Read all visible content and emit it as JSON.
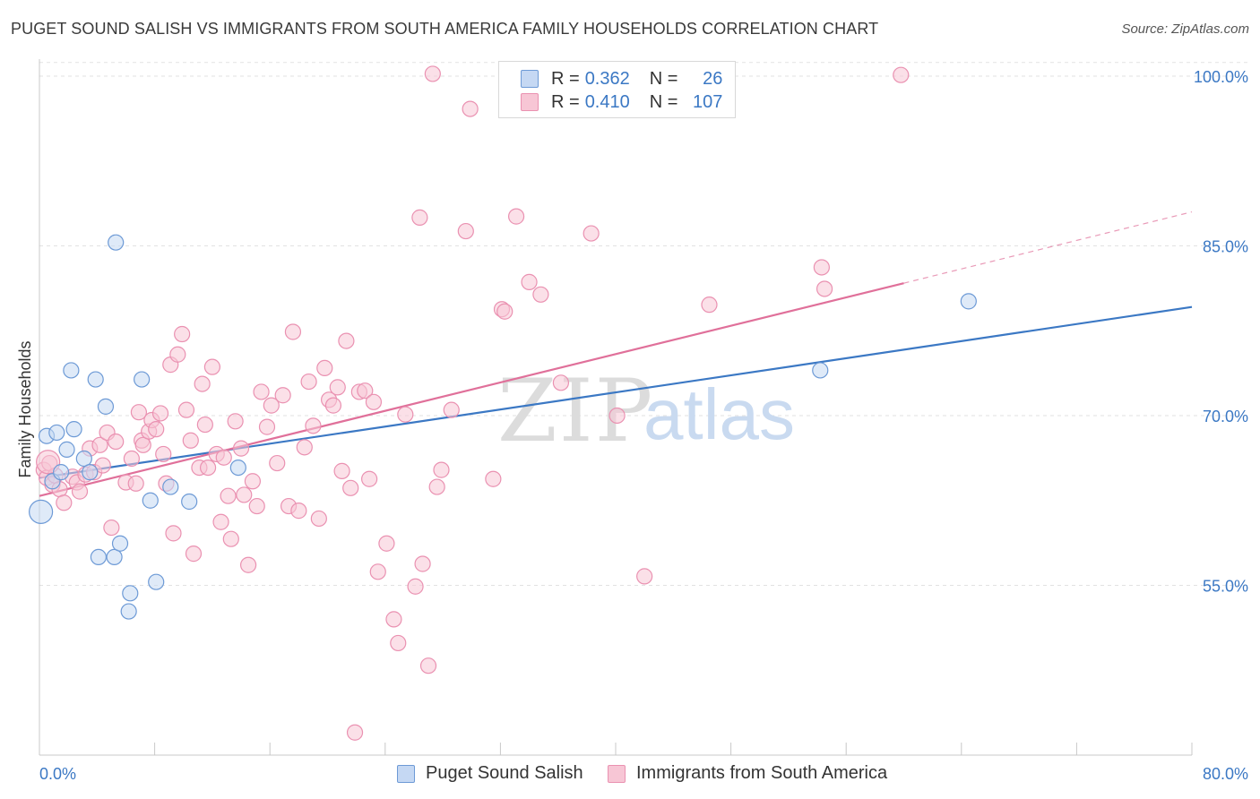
{
  "title": "PUGET SOUND SALISH VS IMMIGRANTS FROM SOUTH AMERICA FAMILY HOUSEHOLDS CORRELATION CHART",
  "source": "Source: ZipAtlas.com",
  "watermark": {
    "zip": "ZIP",
    "atlas": "atlas"
  },
  "colors": {
    "blue": "#3b78c4",
    "blue_fill": "#c5d8f3",
    "blue_stroke": "#6d9ad6",
    "pink": "#e0709a",
    "pink_fill": "#f7c6d5",
    "pink_stroke": "#ea91b1",
    "grid": "#e2e2e2",
    "axis_label": "#3b78c4"
  },
  "legend": {
    "rows": [
      {
        "r_label": "R =",
        "r_value": "0.362",
        "n_label": "N =",
        "n_value": "26"
      },
      {
        "r_label": "R =",
        "r_value": "0.410",
        "n_label": "N =",
        "n_value": "107"
      }
    ]
  },
  "bottom_legend": [
    "Puget Sound Salish",
    "Immigrants from South America"
  ],
  "chart_data": {
    "type": "scatter",
    "title": "PUGET SOUND SALISH VS IMMIGRANTS FROM SOUTH AMERICA FAMILY HOUSEHOLDS CORRELATION CHART",
    "xlabel": "",
    "ylabel": "Family Households",
    "xlim": [
      0,
      80
    ],
    "ylim": [
      40,
      101.5
    ],
    "x_tick_labels": [
      "0.0%",
      "80.0%"
    ],
    "y_ticks": [
      55,
      70,
      85,
      100
    ],
    "y_tick_labels": [
      "55.0%",
      "70.0%",
      "85.0%",
      "100.0%"
    ],
    "grid": "horizontal dashed",
    "series": [
      {
        "name": "Puget Sound Salish",
        "color": "blue",
        "points": [
          [
            0.1,
            61.5
          ],
          [
            0.5,
            68.2
          ],
          [
            0.9,
            64.2
          ],
          [
            1.2,
            68.5
          ],
          [
            1.5,
            65.0
          ],
          [
            1.9,
            67.0
          ],
          [
            2.2,
            74.0
          ],
          [
            2.4,
            68.8
          ],
          [
            3.1,
            66.2
          ],
          [
            3.5,
            65.0
          ],
          [
            3.9,
            73.2
          ],
          [
            4.1,
            57.5
          ],
          [
            4.6,
            70.8
          ],
          [
            5.2,
            57.5
          ],
          [
            5.3,
            85.3
          ],
          [
            5.6,
            58.7
          ],
          [
            6.2,
            52.7
          ],
          [
            6.3,
            54.3
          ],
          [
            7.1,
            73.2
          ],
          [
            7.7,
            62.5
          ],
          [
            8.1,
            55.3
          ],
          [
            9.1,
            63.7
          ],
          [
            10.4,
            62.4
          ],
          [
            13.8,
            65.4
          ],
          [
            54.2,
            74.0
          ],
          [
            64.5,
            80.1
          ]
        ],
        "trend": {
          "x": [
            0,
            80
          ],
          "y": [
            64.5,
            79.6
          ]
        }
      },
      {
        "name": "Immigrants from South America",
        "color": "pink",
        "points": [
          [
            0.3,
            65.2
          ],
          [
            0.5,
            64.5
          ],
          [
            0.7,
            65.8
          ],
          [
            0.9,
            63.9
          ],
          [
            1.1,
            64.7
          ],
          [
            1.4,
            63.5
          ],
          [
            1.7,
            62.3
          ],
          [
            2.3,
            64.6
          ],
          [
            2.6,
            64.1
          ],
          [
            2.8,
            63.3
          ],
          [
            3.2,
            64.8
          ],
          [
            3.5,
            67.1
          ],
          [
            3.8,
            65.0
          ],
          [
            4.2,
            67.4
          ],
          [
            4.4,
            65.6
          ],
          [
            4.7,
            68.5
          ],
          [
            5.0,
            60.1
          ],
          [
            5.3,
            67.7
          ],
          [
            6.0,
            64.1
          ],
          [
            6.4,
            66.2
          ],
          [
            6.7,
            64.0
          ],
          [
            6.9,
            70.3
          ],
          [
            7.1,
            67.8
          ],
          [
            7.2,
            67.4
          ],
          [
            7.6,
            68.6
          ],
          [
            7.8,
            69.6
          ],
          [
            8.1,
            68.8
          ],
          [
            8.4,
            70.2
          ],
          [
            8.6,
            66.6
          ],
          [
            8.8,
            64.0
          ],
          [
            9.1,
            74.5
          ],
          [
            9.3,
            59.6
          ],
          [
            9.6,
            75.4
          ],
          [
            9.9,
            77.2
          ],
          [
            10.2,
            70.5
          ],
          [
            10.5,
            67.8
          ],
          [
            10.7,
            57.8
          ],
          [
            11.1,
            65.4
          ],
          [
            11.3,
            72.8
          ],
          [
            11.5,
            69.2
          ],
          [
            11.7,
            65.4
          ],
          [
            12.0,
            74.3
          ],
          [
            12.3,
            66.6
          ],
          [
            12.6,
            60.6
          ],
          [
            12.8,
            66.3
          ],
          [
            13.1,
            62.9
          ],
          [
            13.3,
            59.1
          ],
          [
            13.6,
            69.5
          ],
          [
            14.0,
            67.1
          ],
          [
            14.2,
            63.0
          ],
          [
            14.5,
            56.8
          ],
          [
            14.8,
            64.2
          ],
          [
            15.1,
            62.0
          ],
          [
            15.4,
            72.1
          ],
          [
            15.8,
            69.0
          ],
          [
            16.1,
            70.9
          ],
          [
            16.5,
            65.8
          ],
          [
            16.9,
            71.8
          ],
          [
            17.3,
            62.0
          ],
          [
            17.6,
            77.4
          ],
          [
            18.0,
            61.6
          ],
          [
            18.4,
            67.2
          ],
          [
            18.7,
            73.0
          ],
          [
            19.0,
            69.1
          ],
          [
            19.4,
            60.9
          ],
          [
            19.8,
            74.2
          ],
          [
            20.1,
            71.4
          ],
          [
            20.4,
            70.9
          ],
          [
            20.7,
            72.5
          ],
          [
            21.0,
            65.1
          ],
          [
            21.3,
            76.6
          ],
          [
            21.6,
            63.6
          ],
          [
            21.9,
            42.0
          ],
          [
            22.2,
            72.1
          ],
          [
            22.6,
            72.2
          ],
          [
            22.9,
            64.4
          ],
          [
            23.2,
            71.2
          ],
          [
            23.5,
            56.2
          ],
          [
            24.1,
            58.7
          ],
          [
            24.6,
            52.0
          ],
          [
            24.9,
            49.9
          ],
          [
            25.4,
            70.1
          ],
          [
            26.1,
            54.9
          ],
          [
            26.4,
            87.5
          ],
          [
            26.6,
            56.9
          ],
          [
            27.0,
            47.9
          ],
          [
            27.3,
            100.2
          ],
          [
            27.6,
            63.7
          ],
          [
            27.9,
            65.2
          ],
          [
            28.6,
            70.5
          ],
          [
            29.6,
            86.3
          ],
          [
            29.9,
            97.1
          ],
          [
            31.5,
            64.4
          ],
          [
            32.1,
            79.4
          ],
          [
            32.3,
            79.2
          ],
          [
            33.1,
            87.6
          ],
          [
            34.0,
            81.8
          ],
          [
            34.8,
            80.7
          ],
          [
            36.2,
            72.9
          ],
          [
            38.3,
            86.1
          ],
          [
            40.1,
            70.0
          ],
          [
            42.0,
            55.8
          ],
          [
            46.5,
            79.8
          ],
          [
            54.3,
            83.1
          ],
          [
            54.5,
            81.2
          ],
          [
            59.8,
            100.1
          ],
          [
            0.6,
            65.9
          ]
        ],
        "trend": {
          "x": [
            0,
            60
          ],
          "y": [
            62.9,
            81.7
          ]
        },
        "trend_dashed": {
          "x": [
            60,
            80
          ],
          "y": [
            81.7,
            88.0
          ]
        }
      }
    ]
  }
}
